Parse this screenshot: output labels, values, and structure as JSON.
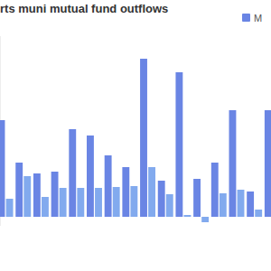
{
  "chart_data": {
    "type": "bar",
    "title": "rts muni mutual fund outflows",
    "categories": [
      null,
      null,
      null,
      null,
      null,
      null,
      null,
      null,
      null,
      null,
      null,
      null,
      null,
      null,
      null,
      null
    ],
    "series": [
      {
        "name": "M",
        "color": "#6a85e4",
        "values": [
          10.7,
          6.0,
          4.8,
          5.0,
          9.7,
          9.0,
          6.8,
          5.5,
          17.5,
          4.0,
          16.0,
          4.2,
          6.0,
          11.8,
          2.8,
          11.8
        ]
      },
      {
        "color": "#82aaee",
        "values": [
          2.0,
          4.5,
          2.2,
          3.2,
          3.2,
          3.2,
          3.3,
          3.4,
          5.5,
          2.5,
          0.2,
          -0.6,
          2.6,
          3.0,
          0.8,
          2.8
        ]
      }
    ],
    "ylim": [
      -1,
      20
    ],
    "tick_labels": false,
    "legend": "top-right",
    "grid": false
  }
}
